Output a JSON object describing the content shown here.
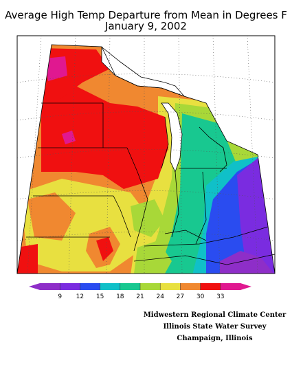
{
  "title_line1": "Average High Temp Departure from Mean in Degrees F",
  "title_line2": "January 9, 2002",
  "legend": {
    "colors": [
      "#8e2ec8",
      "#7a2ce0",
      "#2a4cf0",
      "#10c0c8",
      "#18c890",
      "#a8d838",
      "#e8e040",
      "#f08830",
      "#f01010",
      "#e01890"
    ],
    "labels": [
      "9",
      "12",
      "15",
      "18",
      "21",
      "24",
      "27",
      "30",
      "33"
    ]
  },
  "credits": {
    "line1": "Midwestern Regional Climate Center",
    "line2": "Illinois State Water Survey",
    "line3": "Champaign, Illinois"
  }
}
